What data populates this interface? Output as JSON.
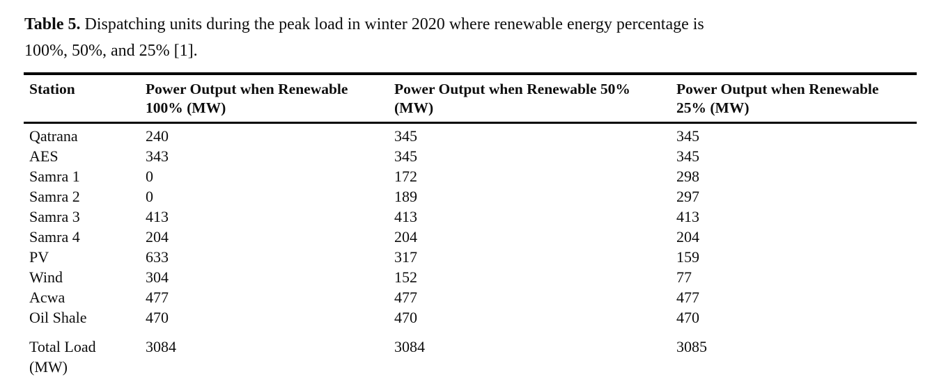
{
  "caption": {
    "label": "Table 5.",
    "line1": " Dispatching units during the peak load in winter 2020 where renewable energy percentage is",
    "line2": "100%, 50%, and 25% [1]."
  },
  "table": {
    "columns": [
      "Station",
      "Power Output when Renewable\n100% (MW)",
      "Power Output when Renewable 50%\n(MW)",
      "Power Output when Renewable\n25% (MW)"
    ],
    "rows": [
      {
        "station": "Qatrana",
        "values": [
          "240",
          "345",
          "345"
        ]
      },
      {
        "station": "AES",
        "values": [
          "343",
          "345",
          "345"
        ]
      },
      {
        "station": "Samra 1",
        "values": [
          "0",
          "172",
          "298"
        ]
      },
      {
        "station": "Samra 2",
        "values": [
          "0",
          "189",
          "297"
        ]
      },
      {
        "station": "Samra 3",
        "values": [
          "413",
          "413",
          "413"
        ]
      },
      {
        "station": "Samra 4",
        "values": [
          "204",
          "204",
          "204"
        ]
      },
      {
        "station": "PV",
        "values": [
          "633",
          "317",
          "159"
        ]
      },
      {
        "station": "Wind",
        "values": [
          "304",
          "152",
          "77"
        ]
      },
      {
        "station": "Acwa",
        "values": [
          "477",
          "477",
          "477"
        ]
      },
      {
        "station": "Oil Shale",
        "values": [
          "470",
          "470",
          "470"
        ]
      },
      {
        "station": "Total Load\n(MW)",
        "values": [
          "3084",
          "3084",
          "3085"
        ],
        "is_total": true
      }
    ]
  },
  "colors": {
    "text": "#0d0d0d",
    "border": "#000000",
    "background": "#ffffff"
  }
}
